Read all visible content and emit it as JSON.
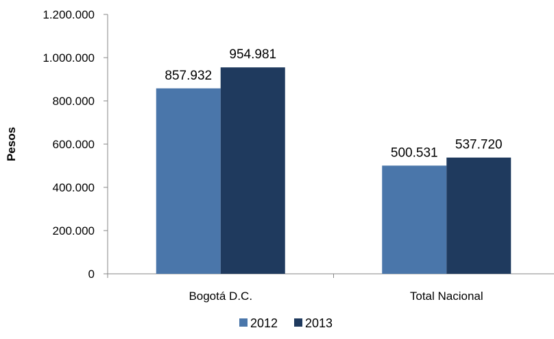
{
  "chart_data": {
    "type": "bar",
    "categories": [
      "Bogotá D.C.",
      "Total Nacional"
    ],
    "series": [
      {
        "name": "2012",
        "values": [
          857932,
          500531
        ],
        "labels": [
          "857.932",
          "500.531"
        ],
        "color": "#4a76aa"
      },
      {
        "name": "2013",
        "values": [
          954981,
          537720
        ],
        "labels": [
          "954.981",
          "537.720"
        ],
        "color": "#1f3a5e"
      }
    ],
    "ylabel": "Pesos",
    "ylim": [
      0,
      1200000
    ],
    "yticks": [
      0,
      200000,
      400000,
      600000,
      800000,
      1000000,
      1200000
    ],
    "ytick_labels": [
      "0",
      "200.000",
      "400.000",
      "600.000",
      "800.000",
      "1.000.000",
      "1.200.000"
    ],
    "grid": false,
    "legend_position": "bottom"
  }
}
